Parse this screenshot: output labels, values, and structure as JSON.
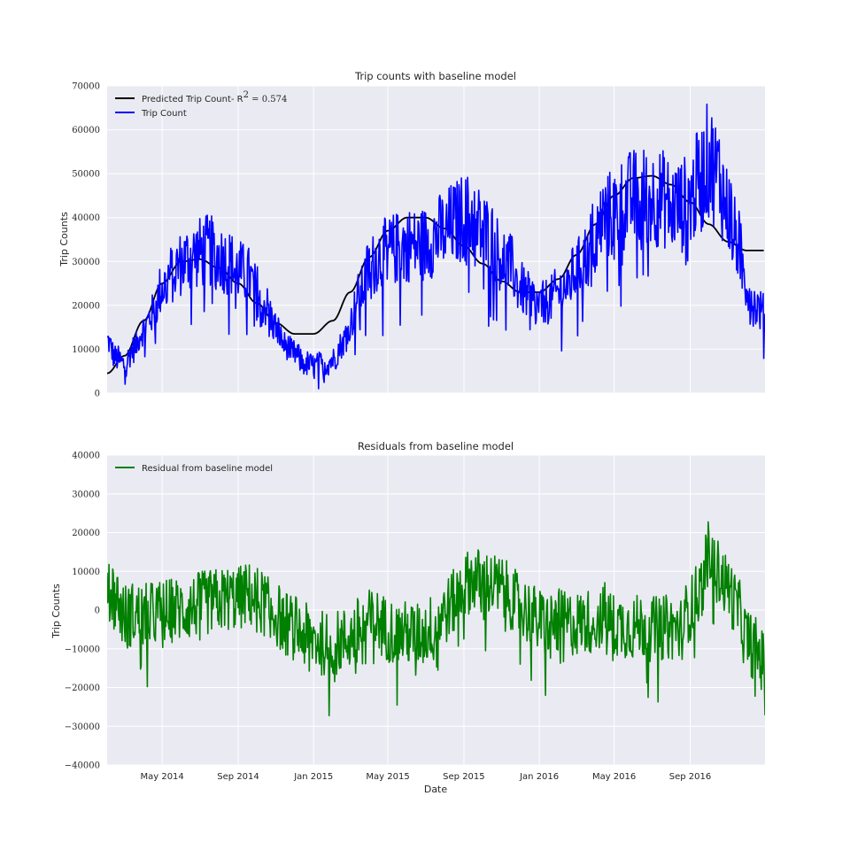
{
  "chart_data": [
    {
      "type": "line",
      "title": "Trip counts with baseline model",
      "xlabel": "",
      "ylabel": "Trip Counts",
      "ylim": [
        0,
        70000
      ],
      "yticks": [
        0,
        10000,
        20000,
        30000,
        40000,
        50000,
        60000,
        70000
      ],
      "x_start": "2014-02-01",
      "x_end": "2016-12-31",
      "grid": true,
      "legend": "top-left",
      "legend_labels": [
        "Predicted Trip Count- R",
        "2",
        " = 0.574",
        "Trip Count"
      ],
      "series": [
        {
          "name": "Predicted Trip Count- R² = 0.574",
          "color": "#000000",
          "style": "smooth",
          "points": [
            [
              "2014-02-01",
              4500
            ],
            [
              "2014-03-01",
              8500
            ],
            [
              "2014-04-01",
              16500
            ],
            [
              "2014-05-01",
              25000
            ],
            [
              "2014-06-01",
              30000
            ],
            [
              "2014-07-01",
              30500
            ],
            [
              "2014-08-01",
              28500
            ],
            [
              "2014-09-01",
              25000
            ],
            [
              "2014-10-01",
              20500
            ],
            [
              "2014-11-01",
              16000
            ],
            [
              "2014-12-01",
              13500
            ],
            [
              "2015-01-01",
              13500
            ],
            [
              "2015-02-01",
              16500
            ],
            [
              "2015-03-01",
              23000
            ],
            [
              "2015-04-01",
              31000
            ],
            [
              "2015-05-01",
              37000
            ],
            [
              "2015-06-01",
              40000
            ],
            [
              "2015-07-01",
              40000
            ],
            [
              "2015-08-01",
              37500
            ],
            [
              "2015-09-01",
              33500
            ],
            [
              "2015-10-01",
              29500
            ],
            [
              "2015-11-01",
              25500
            ],
            [
              "2015-12-01",
              23000
            ],
            [
              "2016-01-01",
              23000
            ],
            [
              "2016-02-01",
              26000
            ],
            [
              "2016-03-01",
              31500
            ],
            [
              "2016-04-01",
              38500
            ],
            [
              "2016-05-01",
              45000
            ],
            [
              "2016-06-01",
              49000
            ],
            [
              "2016-07-01",
              49500
            ],
            [
              "2016-08-01",
              47500
            ],
            [
              "2016-09-01",
              43500
            ],
            [
              "2016-10-01",
              38500
            ],
            [
              "2016-11-01",
              34500
            ],
            [
              "2016-12-01",
              32500
            ],
            [
              "2016-12-31",
              32500
            ]
          ]
        },
        {
          "name": "Trip Count",
          "color": "#0000ff",
          "style": "noisy",
          "points": [
            [
              "2014-02-01",
              12000
            ],
            [
              "2014-02-15",
              8000
            ],
            [
              "2014-03-01",
              6500
            ],
            [
              "2014-03-15",
              10000
            ],
            [
              "2014-04-01",
              14500
            ],
            [
              "2014-04-15",
              18000
            ],
            [
              "2014-05-01",
              24000
            ],
            [
              "2014-05-15",
              27000
            ],
            [
              "2014-06-01",
              29500
            ],
            [
              "2014-06-15",
              31000
            ],
            [
              "2014-07-01",
              32000
            ],
            [
              "2014-07-15",
              32500
            ],
            [
              "2014-08-01",
              31000
            ],
            [
              "2014-08-15",
              30000
            ],
            [
              "2014-09-01",
              28000
            ],
            [
              "2014-09-15",
              27000
            ],
            [
              "2014-10-01",
              23500
            ],
            [
              "2014-10-15",
              20000
            ],
            [
              "2014-11-01",
              15000
            ],
            [
              "2014-11-15",
              11000
            ],
            [
              "2014-12-01",
              9000
            ],
            [
              "2014-12-15",
              7000
            ],
            [
              "2015-01-01",
              6000
            ],
            [
              "2015-01-15",
              6500
            ],
            [
              "2015-02-01",
              7500
            ],
            [
              "2015-02-15",
              11000
            ],
            [
              "2015-03-01",
              16000
            ],
            [
              "2015-03-15",
              22000
            ],
            [
              "2015-04-01",
              28000
            ],
            [
              "2015-04-15",
              31000
            ],
            [
              "2015-05-01",
              32000
            ],
            [
              "2015-05-15",
              33000
            ],
            [
              "2015-06-01",
              34000
            ],
            [
              "2015-06-15",
              33500
            ],
            [
              "2015-07-01",
              34000
            ],
            [
              "2015-07-15",
              35500
            ],
            [
              "2015-08-01",
              37000
            ],
            [
              "2015-08-15",
              38500
            ],
            [
              "2015-09-01",
              40000
            ],
            [
              "2015-09-15",
              40000
            ],
            [
              "2015-10-01",
              37000
            ],
            [
              "2015-10-15",
              35000
            ],
            [
              "2015-11-01",
              31000
            ],
            [
              "2015-11-15",
              29000
            ],
            [
              "2015-12-01",
              24000
            ],
            [
              "2015-12-15",
              22000
            ],
            [
              "2016-01-01",
              20000
            ],
            [
              "2016-01-15",
              21000
            ],
            [
              "2016-02-01",
              23000
            ],
            [
              "2016-02-15",
              24500
            ],
            [
              "2016-03-01",
              28000
            ],
            [
              "2016-03-15",
              31000
            ],
            [
              "2016-04-01",
              36000
            ],
            [
              "2016-04-15",
              40000
            ],
            [
              "2016-05-01",
              41000
            ],
            [
              "2016-05-15",
              43000
            ],
            [
              "2016-06-01",
              44500
            ],
            [
              "2016-06-15",
              45000
            ],
            [
              "2016-07-01",
              44500
            ],
            [
              "2016-07-15",
              44500
            ],
            [
              "2016-08-01",
              43000
            ],
            [
              "2016-08-15",
              42500
            ],
            [
              "2016-09-01",
              44000
            ],
            [
              "2016-09-15",
              48000
            ],
            [
              "2016-10-01",
              53000
            ],
            [
              "2016-10-15",
              50000
            ],
            [
              "2016-11-01",
              42000
            ],
            [
              "2016-11-15",
              35000
            ],
            [
              "2016-12-01",
              25000
            ],
            [
              "2016-12-15",
              20000
            ],
            [
              "2016-12-31",
              18000
            ]
          ]
        }
      ]
    },
    {
      "type": "line",
      "title": "Residuals from baseline model",
      "xlabel": "Date",
      "ylabel": "Trip Counts",
      "ylim": [
        -40000,
        40000
      ],
      "yticks": [
        -40000,
        -30000,
        -20000,
        -10000,
        0,
        10000,
        20000,
        30000,
        40000
      ],
      "x_start": "2014-02-01",
      "x_end": "2016-12-31",
      "xticks": [
        "May 2014",
        "Sep 2014",
        "Jan 2015",
        "May 2015",
        "Sep 2015",
        "Jan 2016",
        "May 2016",
        "Sep 2016"
      ],
      "xtick_dates": [
        "2014-05-01",
        "2014-09-01",
        "2015-01-01",
        "2015-05-01",
        "2015-09-01",
        "2016-01-01",
        "2016-05-01",
        "2016-09-01"
      ],
      "grid": true,
      "legend": "top-left",
      "legend_labels": [
        "Residual from baseline model"
      ],
      "series": [
        {
          "name": "Residual from baseline model",
          "color": "#008000",
          "style": "noisy",
          "points": [
            [
              "2014-02-01",
              8000
            ],
            [
              "2014-02-15",
              3000
            ],
            [
              "2014-03-01",
              -1500
            ],
            [
              "2014-03-15",
              -1000
            ],
            [
              "2014-04-01",
              -1500
            ],
            [
              "2014-04-15",
              -1000
            ],
            [
              "2014-05-01",
              -500
            ],
            [
              "2014-05-15",
              0
            ],
            [
              "2014-06-01",
              0
            ],
            [
              "2014-06-15",
              500
            ],
            [
              "2014-07-01",
              1500
            ],
            [
              "2014-07-15",
              2000
            ],
            [
              "2014-08-01",
              2500
            ],
            [
              "2014-08-15",
              3000
            ],
            [
              "2014-09-01",
              3000
            ],
            [
              "2014-09-15",
              4000
            ],
            [
              "2014-10-01",
              3000
            ],
            [
              "2014-10-15",
              1500
            ],
            [
              "2014-11-01",
              -1000
            ],
            [
              "2014-11-15",
              -3500
            ],
            [
              "2014-12-01",
              -4500
            ],
            [
              "2014-12-15",
              -6500
            ],
            [
              "2015-01-01",
              -7500
            ],
            [
              "2015-01-15",
              -8500
            ],
            [
              "2015-02-01",
              -9000
            ],
            [
              "2015-02-15",
              -8000
            ],
            [
              "2015-03-01",
              -7000
            ],
            [
              "2015-03-15",
              -5000
            ],
            [
              "2015-04-01",
              -3000
            ],
            [
              "2015-04-15",
              -3000
            ],
            [
              "2015-05-01",
              -5000
            ],
            [
              "2015-05-15",
              -6000
            ],
            [
              "2015-06-01",
              -6000
            ],
            [
              "2015-06-15",
              -6500
            ],
            [
              "2015-07-01",
              -6000
            ],
            [
              "2015-07-15",
              -3500
            ],
            [
              "2015-08-01",
              -500
            ],
            [
              "2015-08-15",
              2000
            ],
            [
              "2015-09-01",
              6500
            ],
            [
              "2015-09-15",
              8000
            ],
            [
              "2015-10-01",
              7500
            ],
            [
              "2015-10-15",
              6500
            ],
            [
              "2015-11-01",
              5500
            ],
            [
              "2015-11-15",
              3500
            ],
            [
              "2015-12-01",
              1000
            ],
            [
              "2015-12-15",
              -500
            ],
            [
              "2016-01-01",
              -3000
            ],
            [
              "2016-01-15",
              -3500
            ],
            [
              "2016-02-01",
              -3000
            ],
            [
              "2016-02-15",
              -3500
            ],
            [
              "2016-03-01",
              -3500
            ],
            [
              "2016-03-15",
              -3000
            ],
            [
              "2016-04-01",
              -2500
            ],
            [
              "2016-04-15",
              -1000
            ],
            [
              "2016-05-01",
              -4000
            ],
            [
              "2016-05-15",
              -4000
            ],
            [
              "2016-06-01",
              -4500
            ],
            [
              "2016-06-15",
              -4000
            ],
            [
              "2016-07-01",
              -5000
            ],
            [
              "2016-07-15",
              -4500
            ],
            [
              "2016-08-01",
              -4500
            ],
            [
              "2016-08-15",
              -5000
            ],
            [
              "2016-09-01",
              500
            ],
            [
              "2016-09-15",
              4500
            ],
            [
              "2016-10-01",
              14500
            ],
            [
              "2016-10-15",
              10000
            ],
            [
              "2016-11-01",
              6000
            ],
            [
              "2016-11-15",
              1000
            ],
            [
              "2016-12-01",
              -7000
            ],
            [
              "2016-12-15",
              -10000
            ],
            [
              "2016-12-31",
              -14000
            ]
          ]
        }
      ]
    }
  ]
}
